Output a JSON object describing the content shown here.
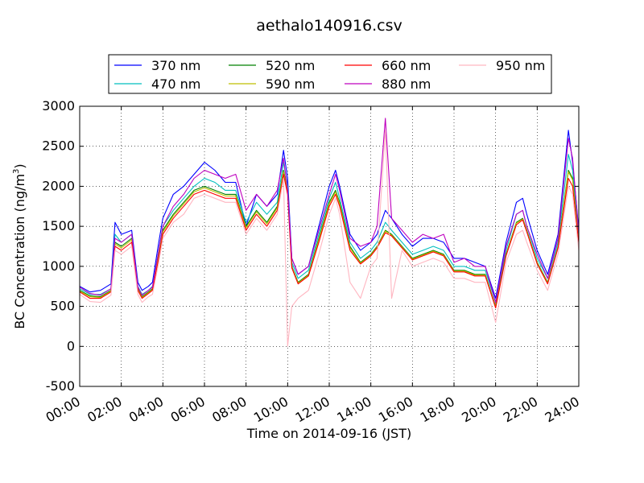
{
  "chart_data": {
    "type": "line",
    "title": "aethalo140916.csv",
    "xlabel": "Time on 2014-09-16 (JST)",
    "ylabel": "BC Concentration (ng/m³)",
    "ylabel_parts": {
      "base": "BC Concentration (ng/m",
      "sup": "3",
      "tail": ")"
    },
    "ylim": [
      -500,
      3000
    ],
    "xlim": [
      0,
      24
    ],
    "grid": true,
    "legend_position": "top",
    "yticks": [
      -500,
      0,
      500,
      1000,
      1500,
      2000,
      2500,
      3000
    ],
    "xticks": [
      {
        "x": 0,
        "label": "00:00"
      },
      {
        "x": 2,
        "label": "02:00"
      },
      {
        "x": 4,
        "label": "04:00"
      },
      {
        "x": 6,
        "label": "06:00"
      },
      {
        "x": 8,
        "label": "08:00"
      },
      {
        "x": 10,
        "label": "10:00"
      },
      {
        "x": 12,
        "label": "12:00"
      },
      {
        "x": 14,
        "label": "14:00"
      },
      {
        "x": 16,
        "label": "16:00"
      },
      {
        "x": 18,
        "label": "18:00"
      },
      {
        "x": 20,
        "label": "20:00"
      },
      {
        "x": 22,
        "label": "22:00"
      },
      {
        "x": 24,
        "label": "24:00"
      }
    ],
    "x": [
      0,
      0.5,
      1,
      1.5,
      1.7,
      2,
      2.5,
      2.8,
      3,
      3.3,
      3.5,
      3.8,
      4,
      4.5,
      5,
      5.5,
      6,
      6.5,
      7,
      7.5,
      8,
      8.5,
      9,
      9.5,
      9.8,
      10,
      10.2,
      10.5,
      11,
      11.5,
      12,
      12.3,
      12.5,
      13,
      13.5,
      14,
      14.3,
      14.7,
      15,
      15.5,
      16,
      16.5,
      17,
      17.5,
      18,
      18.5,
      19,
      19.5,
      20,
      20.5,
      21,
      21.3,
      21.5,
      22,
      22.5,
      23,
      23.5,
      23.7,
      24
    ],
    "series": [
      {
        "name": "370 nm",
        "color": "#0000ff",
        "values": [
          750,
          680,
          700,
          780,
          1550,
          1400,
          1450,
          800,
          700,
          750,
          800,
          1300,
          1600,
          1900,
          2000,
          2150,
          2300,
          2200,
          2050,
          2050,
          1500,
          1900,
          1750,
          1900,
          2450,
          2100,
          1100,
          900,
          1000,
          1500,
          2000,
          2200,
          2000,
          1400,
          1200,
          1300,
          1400,
          1700,
          1600,
          1400,
          1250,
          1350,
          1350,
          1300,
          1100,
          1100,
          1050,
          1000,
          600,
          1300,
          1800,
          1850,
          1650,
          1200,
          900,
          1400,
          2700,
          2300,
          1450
        ]
      },
      {
        "name": "470 nm",
        "color": "#00bfbf",
        "values": [
          720,
          650,
          650,
          720,
          1400,
          1300,
          1400,
          750,
          650,
          700,
          750,
          1200,
          1500,
          1700,
          1850,
          2000,
          2100,
          2050,
          1950,
          1950,
          1550,
          1800,
          1650,
          1800,
          2300,
          2000,
          1050,
          850,
          950,
          1400,
          1850,
          2050,
          1850,
          1300,
          1100,
          1200,
          1300,
          1550,
          1450,
          1300,
          1150,
          1200,
          1250,
          1200,
          1000,
          1000,
          950,
          950,
          550,
          1200,
          1650,
          1700,
          1500,
          1100,
          850,
          1300,
          2400,
          2200,
          1350
        ]
      },
      {
        "name": "520 nm",
        "color": "#008000",
        "values": [
          700,
          630,
          620,
          700,
          1300,
          1250,
          1350,
          720,
          620,
          680,
          720,
          1150,
          1450,
          1650,
          1800,
          1950,
          2000,
          1950,
          1900,
          1900,
          1500,
          1700,
          1550,
          1750,
          2200,
          1950,
          1000,
          800,
          900,
          1350,
          1800,
          1950,
          1800,
          1250,
          1050,
          1150,
          1250,
          1450,
          1400,
          1250,
          1100,
          1150,
          1200,
          1150,
          950,
          950,
          900,
          900,
          500,
          1150,
          1550,
          1600,
          1450,
          1050,
          800,
          1250,
          2200,
          2100,
          1300
        ]
      },
      {
        "name": "590 nm",
        "color": "#bfbf00",
        "values": [
          690,
          620,
          610,
          690,
          1280,
          1230,
          1330,
          710,
          610,
          670,
          710,
          1130,
          1430,
          1630,
          1780,
          1930,
          1980,
          1930,
          1880,
          1880,
          1480,
          1680,
          1530,
          1730,
          2180,
          1930,
          990,
          790,
          890,
          1330,
          1780,
          1930,
          1780,
          1230,
          1040,
          1140,
          1240,
          1440,
          1390,
          1240,
          1090,
          1140,
          1190,
          1140,
          940,
          940,
          890,
          890,
          490,
          1140,
          1540,
          1590,
          1440,
          1040,
          790,
          1240,
          2180,
          2080,
          1290
        ]
      },
      {
        "name": "660 nm",
        "color": "#ff0000",
        "values": [
          680,
          600,
          600,
          680,
          1250,
          1200,
          1300,
          700,
          600,
          660,
          700,
          1100,
          1400,
          1600,
          1750,
          1900,
          1950,
          1900,
          1850,
          1850,
          1450,
          1650,
          1500,
          1700,
          2150,
          1900,
          980,
          780,
          880,
          1300,
          1750,
          1900,
          1750,
          1200,
          1030,
          1130,
          1230,
          1420,
          1380,
          1230,
          1080,
          1130,
          1180,
          1130,
          930,
          930,
          880,
          880,
          480,
          1130,
          1520,
          1580,
          1430,
          1030,
          780,
          1230,
          2100,
          2000,
          1280
        ]
      },
      {
        "name": "880 nm",
        "color": "#bf00bf",
        "values": [
          740,
          660,
          640,
          720,
          1350,
          1300,
          1400,
          740,
          640,
          700,
          740,
          1200,
          1500,
          1750,
          1900,
          2100,
          2200,
          2150,
          2100,
          2150,
          1700,
          1900,
          1750,
          1950,
          2350,
          1950,
          1100,
          900,
          1000,
          1450,
          1900,
          2150,
          1950,
          1350,
          1250,
          1300,
          1500,
          2850,
          1600,
          1450,
          1300,
          1400,
          1350,
          1400,
          1050,
          1100,
          1000,
          1000,
          550,
          1250,
          1650,
          1700,
          1500,
          1150,
          850,
          1350,
          2600,
          2350,
          1400
        ]
      },
      {
        "name": "950 nm",
        "color": "#ffb6c1",
        "values": [
          650,
          560,
          550,
          640,
          1200,
          1150,
          1250,
          650,
          550,
          620,
          650,
          1050,
          1350,
          1550,
          1650,
          1850,
          1900,
          1850,
          1800,
          1800,
          1400,
          1600,
          1450,
          1650,
          2100,
          0,
          500,
          600,
          700,
          1150,
          1650,
          1850,
          1650,
          800,
          600,
          1000,
          1100,
          2700,
          600,
          1200,
          1000,
          1050,
          1100,
          1050,
          850,
          850,
          800,
          800,
          300,
          1050,
          1400,
          1450,
          1300,
          950,
          700,
          1150,
          2000,
          1900,
          1200
        ]
      }
    ]
  }
}
